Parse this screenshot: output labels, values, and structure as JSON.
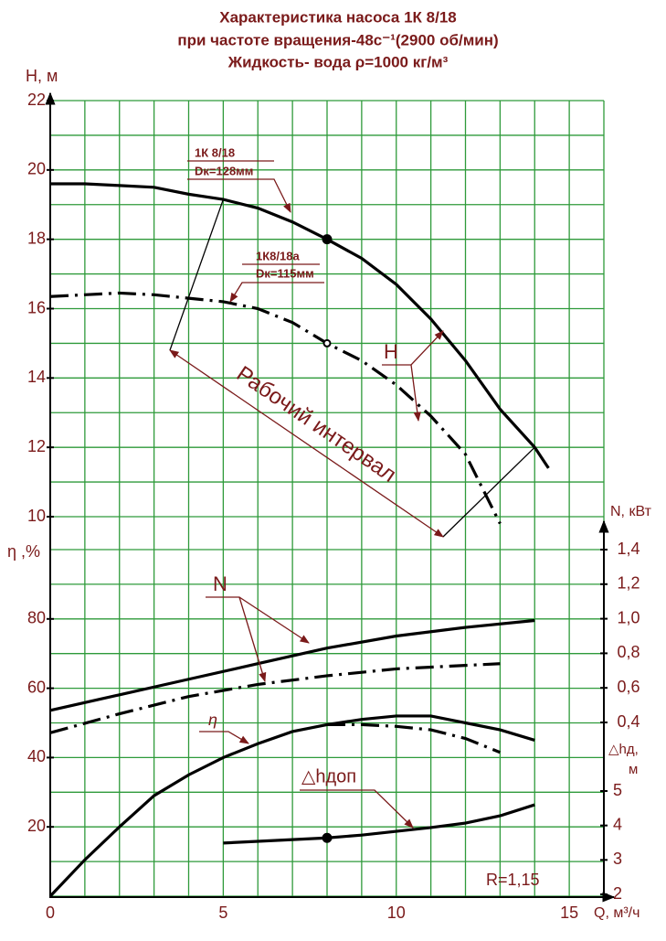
{
  "chart_data": {
    "type": "line",
    "title": [
      "Характеристика насоса 1К 8/18",
      "при частоте вращения-48с⁻¹(2900 об/мин)",
      "Жидкость- вода ρ=1000 кг/м³"
    ],
    "x_label": "Q, м³/ч",
    "xlim": [
      0,
      16
    ],
    "xticks": [
      0,
      5,
      10,
      15
    ],
    "xgrid": [
      0,
      1,
      2,
      3,
      4,
      5,
      6,
      7,
      8,
      9,
      10,
      11,
      12,
      13,
      14,
      15,
      16
    ],
    "y_axes": {
      "H": {
        "label": "H, м",
        "ylim": [
          10,
          22
        ],
        "yticks": [
          10,
          12,
          14,
          16,
          18,
          20,
          22
        ],
        "grid": [
          10,
          11,
          12,
          13,
          14,
          15,
          16,
          17,
          18,
          19,
          20,
          21,
          22
        ]
      },
      "eta": {
        "label": "η ,%",
        "ylim": [
          0,
          100
        ],
        "yticks": [
          20,
          40,
          60,
          80
        ],
        "grid": [
          0,
          10,
          20,
          30,
          40,
          50,
          60,
          70,
          80,
          90,
          100
        ]
      },
      "N": {
        "label": "N, кВт",
        "ylim": [
          0.4,
          1.4
        ],
        "yticks": [
          {
            "value": 0.4,
            "label": "0,4"
          },
          {
            "value": 0.6,
            "label": "0,6"
          },
          {
            "value": 0.8,
            "label": "0,8"
          },
          {
            "value": 1.0,
            "label": "1,0"
          },
          {
            "value": 1.2,
            "label": "1,2"
          },
          {
            "value": 1.4,
            "label": "1,4"
          }
        ]
      },
      "dh": {
        "label": [
          "△hд,",
          "м"
        ],
        "ylim": [
          2,
          5
        ],
        "yticks": [
          2,
          3,
          4,
          5
        ]
      }
    },
    "series": [
      {
        "axis": "H",
        "style": "solid",
        "color": "#000000",
        "marker_x": 8,
        "marker": "filled",
        "x": [
          0,
          1,
          2,
          3,
          4,
          5,
          6,
          7,
          8,
          9,
          10,
          11,
          12,
          13,
          14,
          14.4
        ],
        "values": [
          19.6,
          19.6,
          19.55,
          19.5,
          19.3,
          19.15,
          18.9,
          18.5,
          18.0,
          17.45,
          16.7,
          15.7,
          14.5,
          13.1,
          12.0,
          11.4
        ]
      },
      {
        "axis": "H",
        "style": "dashdot",
        "color": "#000000",
        "marker_x": 8,
        "marker": "hollow",
        "x": [
          0,
          1,
          2,
          3,
          4,
          5,
          6,
          7,
          8,
          9,
          10,
          11,
          12,
          13
        ],
        "values": [
          16.35,
          16.4,
          16.45,
          16.4,
          16.3,
          16.2,
          16.0,
          15.6,
          15.0,
          14.5,
          13.8,
          12.9,
          11.8,
          9.8
        ]
      },
      {
        "axis": "N",
        "style": "solid",
        "color": "#000000",
        "x": [
          0,
          2,
          4,
          6,
          8,
          10,
          12,
          14
        ],
        "values": [
          0.47,
          0.56,
          0.65,
          0.74,
          0.83,
          0.9,
          0.95,
          0.99
        ]
      },
      {
        "axis": "N",
        "style": "dashdot",
        "color": "#000000",
        "x": [
          0,
          2,
          4,
          6,
          8,
          10,
          12,
          13
        ],
        "values": [
          0.34,
          0.45,
          0.55,
          0.62,
          0.67,
          0.71,
          0.73,
          0.74
        ]
      },
      {
        "axis": "eta",
        "style": "solid",
        "color": "#000000",
        "x": [
          0,
          1,
          2,
          3,
          4,
          5,
          6,
          7,
          8,
          9,
          10,
          11,
          12,
          13,
          14
        ],
        "values": [
          0,
          10.5,
          20,
          29,
          35,
          40,
          44,
          47.5,
          49.5,
          51,
          52,
          52,
          50,
          48,
          45
        ]
      },
      {
        "axis": "eta",
        "style": "dashdot",
        "color": "#000000",
        "x": [
          8,
          9,
          10,
          11,
          12,
          13
        ],
        "values": [
          49.5,
          49.5,
          49,
          48,
          45.5,
          41.5
        ]
      },
      {
        "axis": "dh",
        "style": "solid",
        "color": "#000000",
        "marker_x": 8,
        "marker": "filled",
        "x": [
          5,
          6,
          7,
          8,
          9,
          10,
          11,
          12,
          13,
          14
        ],
        "values": [
          3.49,
          3.54,
          3.59,
          3.64,
          3.72,
          3.83,
          3.94,
          4.07,
          4.28,
          4.6
        ]
      }
    ],
    "work_interval": {
      "label": "Рабочий интервал",
      "q": [
        5,
        14
      ]
    },
    "annotations": {
      "pump1": [
        "1К 8/18",
        "Dк=128мм"
      ],
      "pump2": [
        "1К8/18а",
        "Dк=115мм"
      ],
      "H": "H",
      "N": "N",
      "eta": "η",
      "dh": "△hдоп",
      "R": "R=1,15"
    }
  }
}
